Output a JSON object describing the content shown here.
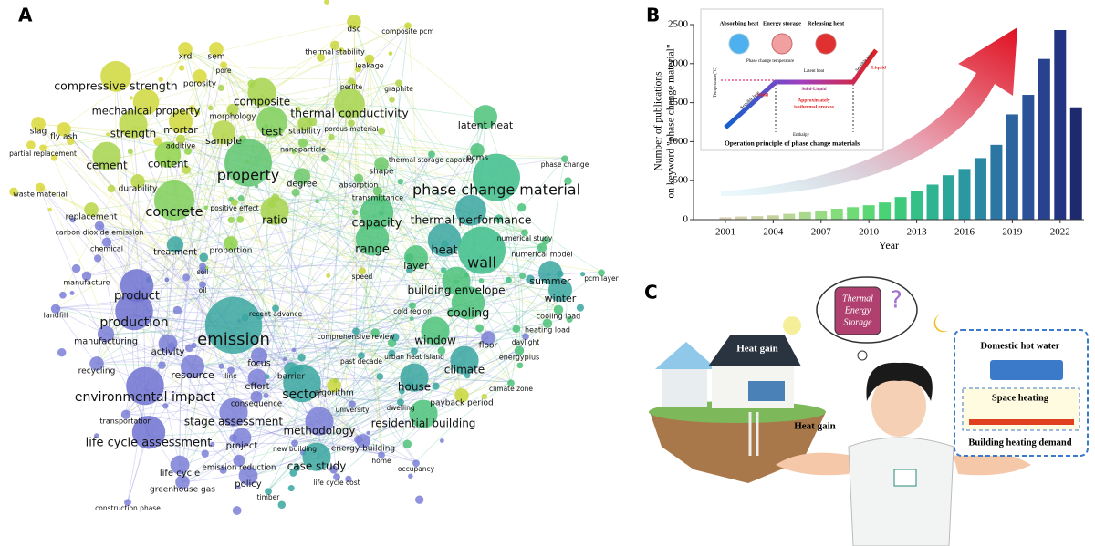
{
  "panel_labels": [
    "A",
    "B",
    "C"
  ],
  "network": {
    "nodes": [
      {
        "label": "dsc",
        "color": "#c9d63a"
      },
      {
        "label": "composite pcm",
        "color": "#c9d63a"
      },
      {
        "label": "thermal stability",
        "color": "#c9d63a"
      },
      {
        "label": "xrd",
        "color": "#d9d83a"
      },
      {
        "label": "sem",
        "color": "#d9d83a"
      },
      {
        "label": "leakage",
        "color": "#c9d63a"
      },
      {
        "label": "pore",
        "color": "#d9d83a"
      },
      {
        "label": "porosity",
        "color": "#d9d83a"
      },
      {
        "label": "compressive strength",
        "color": "#cfd83c"
      },
      {
        "label": "perlite",
        "color": "#b5d54a"
      },
      {
        "label": "graphite",
        "color": "#b5d54a"
      },
      {
        "label": "composite",
        "color": "#a6d44c"
      },
      {
        "label": "mechanical property",
        "color": "#cfd83c"
      },
      {
        "label": "morphology",
        "color": "#b5d54a"
      },
      {
        "label": "thermal conductivity",
        "color": "#a6d44c"
      },
      {
        "label": "latent heat",
        "color": "#4cc27a"
      },
      {
        "label": "slag",
        "color": "#d9d83a"
      },
      {
        "label": "mortar",
        "color": "#cfd83c"
      },
      {
        "label": "test",
        "color": "#7fcf5a"
      },
      {
        "label": "stability",
        "color": "#a6d44c"
      },
      {
        "label": "porous material",
        "color": "#a6d44c"
      },
      {
        "label": "fly ash",
        "color": "#d9d83a"
      },
      {
        "label": "strength",
        "color": "#b9d645"
      },
      {
        "label": "sample",
        "color": "#b5d54a"
      },
      {
        "label": "nanoparticle",
        "color": "#7fcf5a"
      },
      {
        "label": "additive",
        "color": "#b9d645"
      },
      {
        "label": "partial replacement",
        "color": "#d9d83a"
      },
      {
        "label": "thermal storage capacity",
        "color": "#4cc27a"
      },
      {
        "label": "pcms",
        "color": "#4cc27a"
      },
      {
        "label": "phase change",
        "color": "#4cc27a"
      },
      {
        "label": "cement",
        "color": "#a6d44c"
      },
      {
        "label": "content",
        "color": "#8fd34a"
      },
      {
        "label": "shape",
        "color": "#6cc86a"
      },
      {
        "label": "property",
        "color": "#5ec46e"
      },
      {
        "label": "absorption",
        "color": "#6cc86a"
      },
      {
        "label": "degree",
        "color": "#6cc86a"
      },
      {
        "label": "durability",
        "color": "#b9d645"
      },
      {
        "label": "phase change material",
        "color": "#3dbd8a"
      },
      {
        "label": "waste material",
        "color": "#d9d83a"
      },
      {
        "label": "transmittance",
        "color": "#6cc86a"
      },
      {
        "label": "positive effect",
        "color": "#a6d44c"
      },
      {
        "label": "concrete",
        "color": "#7fcf5a"
      },
      {
        "label": "ratio",
        "color": "#a6d44c"
      },
      {
        "label": "replacement",
        "color": "#b9d645"
      },
      {
        "label": "capacity",
        "color": "#4cc27a"
      },
      {
        "label": "thermal performance",
        "color": "#3aa6a0"
      },
      {
        "label": "carbon dioxide emission",
        "color": "#7b7fd6"
      },
      {
        "label": "numerical study",
        "color": "#4cc27a"
      },
      {
        "label": "chemical",
        "color": "#7b7fd6"
      },
      {
        "label": "treatment",
        "color": "#3aa6a0"
      },
      {
        "label": "proportion",
        "color": "#8fd34a"
      },
      {
        "label": "range",
        "color": "#4cc27a"
      },
      {
        "label": "heat",
        "color": "#3aa6a0"
      },
      {
        "label": "numerical model",
        "color": "#4cc27a"
      },
      {
        "label": "layer",
        "color": "#4cc27a"
      },
      {
        "label": "wall",
        "color": "#3dbd8a"
      },
      {
        "label": "soil",
        "color": "#7b7fd6"
      },
      {
        "label": "speed",
        "color": "#c9d63a"
      },
      {
        "label": "pcm layer",
        "color": "#4cc27a"
      },
      {
        "label": "summer",
        "color": "#3aa6a0"
      },
      {
        "label": "manufacture",
        "color": "#7b7fd6"
      },
      {
        "label": "oil",
        "color": "#7b7fd6"
      },
      {
        "label": "building envelope",
        "color": "#4cc27a"
      },
      {
        "label": "winter",
        "color": "#3aa6a0"
      },
      {
        "label": "product",
        "color": "#6e72d0"
      },
      {
        "label": "landfill",
        "color": "#7b7fd6"
      },
      {
        "label": "recent advance",
        "color": "#3aa6a0"
      },
      {
        "label": "cold region",
        "color": "#4cc27a"
      },
      {
        "label": "cooling",
        "color": "#4cc27a"
      },
      {
        "label": "cooling load",
        "color": "#4cc27a"
      },
      {
        "label": "production",
        "color": "#6e72d0"
      },
      {
        "label": "heating load",
        "color": "#4cc27a"
      },
      {
        "label": "emission",
        "color": "#3aa6a0"
      },
      {
        "label": "manufacturing",
        "color": "#7b7fd6"
      },
      {
        "label": "comprehensive review",
        "color": "#3aa6a0"
      },
      {
        "label": "window",
        "color": "#4cc27a"
      },
      {
        "label": "daylight",
        "color": "#7b7fd6"
      },
      {
        "label": "floor",
        "color": "#7b7fd6"
      },
      {
        "label": "activity",
        "color": "#7b7fd6"
      },
      {
        "label": "energyplus",
        "color": "#4cc27a"
      },
      {
        "label": "urban heat island",
        "color": "#3aa6a0"
      },
      {
        "label": "past decade",
        "color": "#3aa6a0"
      },
      {
        "label": "focus",
        "color": "#7b7fd6"
      },
      {
        "label": "recycling",
        "color": "#7b7fd6"
      },
      {
        "label": "climate",
        "color": "#3aa6a0"
      },
      {
        "label": "resource",
        "color": "#7b7fd6"
      },
      {
        "label": "line",
        "color": "#7b7fd6"
      },
      {
        "label": "barrier",
        "color": "#3aa6a0"
      },
      {
        "label": "effort",
        "color": "#7b7fd6"
      },
      {
        "label": "climate zone",
        "color": "#4cc27a"
      },
      {
        "label": "house",
        "color": "#3aa6a0"
      },
      {
        "label": "algorithm",
        "color": "#c9d63a"
      },
      {
        "label": "environmental impact",
        "color": "#6e72d0"
      },
      {
        "label": "sector",
        "color": "#3aa6a0"
      },
      {
        "label": "consequence",
        "color": "#7b7fd6"
      },
      {
        "label": "dwelling",
        "color": "#3aa6a0"
      },
      {
        "label": "university",
        "color": "#7b7fd6"
      },
      {
        "label": "payback period",
        "color": "#c9d63a"
      },
      {
        "label": "stage assessment",
        "color": "#7b7fd6"
      },
      {
        "label": "residential building",
        "color": "#4cc27a"
      },
      {
        "label": "transportation",
        "color": "#7b7fd6"
      },
      {
        "label": "methodology",
        "color": "#7b7fd6"
      },
      {
        "label": "life cycle assessment",
        "color": "#6e72d0"
      },
      {
        "label": "project",
        "color": "#7b7fd6"
      },
      {
        "label": "new building",
        "color": "#7b7fd6"
      },
      {
        "label": "energy building",
        "color": "#7b7fd6"
      },
      {
        "label": "home",
        "color": "#7b7fd6"
      },
      {
        "label": "case study",
        "color": "#3aa6a0"
      },
      {
        "label": "emission reduction",
        "color": "#7b7fd6"
      },
      {
        "label": "occupancy",
        "color": "#7b7fd6"
      },
      {
        "label": "life cycle",
        "color": "#7b7fd6"
      },
      {
        "label": "policy",
        "color": "#7b7fd6"
      },
      {
        "label": "life cycle cost",
        "color": "#7b7fd6"
      },
      {
        "label": "greenhouse gas",
        "color": "#7b7fd6"
      },
      {
        "label": "timber",
        "color": "#3aa6a0"
      },
      {
        "label": "construction phase",
        "color": "#7b7fd6"
      }
    ]
  },
  "chart_data": {
    "type": "bar",
    "ylabel": [
      "Number of publications",
      "on keyword \"phase change material\""
    ],
    "xlabel": "Year",
    "x": [
      2001,
      2002,
      2003,
      2004,
      2005,
      2006,
      2007,
      2008,
      2009,
      2010,
      2011,
      2012,
      2013,
      2014,
      2015,
      2016,
      2017,
      2018,
      2019,
      2020,
      2021,
      2022,
      2023
    ],
    "values": [
      30,
      40,
      45,
      55,
      75,
      95,
      110,
      140,
      160,
      185,
      220,
      290,
      370,
      450,
      570,
      650,
      790,
      960,
      1350,
      1600,
      2060,
      2430,
      1440
    ],
    "colors": [
      "#d8cfb4",
      "#d4d0ae",
      "#cdd1a6",
      "#c4d39e",
      "#b8d696",
      "#a9d98d",
      "#97db84",
      "#84dc7c",
      "#6fdb76",
      "#5bd873",
      "#4ad276",
      "#3dca7d",
      "#34c087",
      "#2fb491",
      "#2ca69a",
      "#2b97a0",
      "#2b87a3",
      "#2c76a3",
      "#2c64a0",
      "#2b5299",
      "#28428f",
      "#233483",
      "#1e2a6e"
    ],
    "xlim": [
      1999,
      2023.5
    ],
    "xticks": [
      2001,
      2004,
      2007,
      2010,
      2013,
      2016,
      2019,
      2022
    ],
    "ylim": [
      0,
      2500
    ],
    "yticks": [
      0,
      500,
      1000,
      1500,
      2000,
      2500
    ],
    "inset": {
      "absorbing": "Absorbing heat",
      "storage": "Energy storage",
      "releasing": "Releasing heat",
      "temperature": "Temperature(°C)",
      "pc_temperature": "Phase change temperature",
      "latent": "Latent heat",
      "sensible_left": "Sensible heat",
      "sensible_right": "Sensible heat",
      "solid": "Solid",
      "liquid": "Liquid",
      "solid_liquid": "Solid-Liquid",
      "isothermal": [
        "Approximately",
        "isothermal process"
      ],
      "enthalpy": "Enthalpy",
      "caption": "Operation principle of phase change materials"
    }
  },
  "illustration": {
    "tes": [
      "Thermal",
      "Energy",
      "Storage"
    ],
    "heat_gain_roof": "Heat gain",
    "heat_gain_ground": "Heat gain",
    "hot_water": "Domestic hot water",
    "space_heating": "Space heating",
    "demand": "Building heating demand"
  }
}
